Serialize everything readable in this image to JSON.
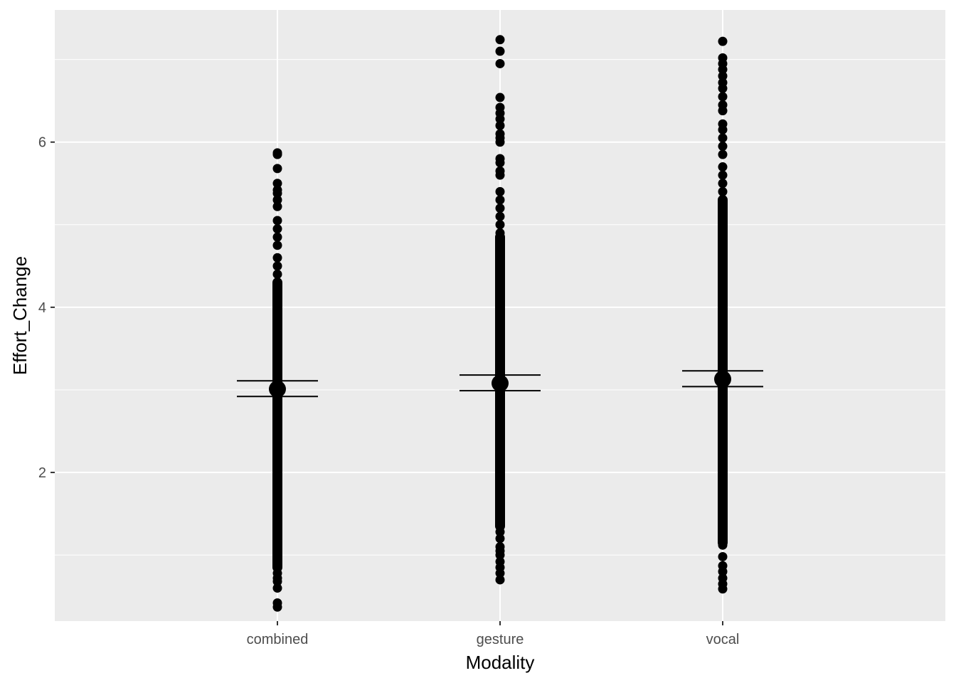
{
  "chart_data": {
    "type": "scatter",
    "title": "",
    "xlabel": "Modality",
    "ylabel": "Effort_Change",
    "categories": [
      "combined",
      "gesture",
      "vocal"
    ],
    "y_ticks": [
      2,
      4,
      6
    ],
    "ylim": [
      0.2,
      7.6
    ],
    "grid": true,
    "legend": "none",
    "colors": {
      "panel": "#ebebeb",
      "grid": "#ffffff",
      "points": "#000000",
      "tick_text": "#4d4d4d"
    },
    "series": [
      {
        "category": "combined",
        "range": [
          0.37,
          5.87
        ],
        "dense_range": [
          0.85,
          4.3
        ],
        "sparse_values": [
          0.37,
          0.42,
          0.6,
          0.68,
          0.72,
          0.78,
          4.3,
          4.4,
          4.5,
          4.6,
          4.75,
          4.85,
          4.95,
          5.05,
          5.22,
          5.3,
          5.38,
          5.42,
          5.5,
          5.68,
          5.85,
          5.87
        ],
        "mean": 3.01,
        "ci": [
          2.92,
          3.11
        ]
      },
      {
        "category": "gesture",
        "range": [
          0.7,
          7.24
        ],
        "dense_range": [
          1.35,
          4.85
        ],
        "sparse_values": [
          0.7,
          0.78,
          0.85,
          0.92,
          1.0,
          1.05,
          1.1,
          1.2,
          1.28,
          4.9,
          5.0,
          5.1,
          5.2,
          5.3,
          5.4,
          5.6,
          5.65,
          5.75,
          5.8,
          6.0,
          6.05,
          6.1,
          6.2,
          6.28,
          6.35,
          6.42,
          6.54,
          6.95,
          7.1,
          7.24
        ],
        "mean": 3.08,
        "ci": [
          2.99,
          3.18
        ]
      },
      {
        "category": "vocal",
        "range": [
          0.59,
          7.22
        ],
        "dense_range": [
          1.15,
          5.3
        ],
        "sparse_values": [
          0.59,
          0.65,
          0.72,
          0.8,
          0.87,
          0.98,
          1.12,
          1.2,
          5.4,
          5.5,
          5.6,
          5.7,
          5.85,
          5.95,
          6.05,
          6.15,
          6.22,
          6.38,
          6.45,
          6.55,
          6.65,
          6.72,
          6.8,
          6.88,
          6.95,
          7.02,
          7.22
        ],
        "mean": 3.13,
        "ci": [
          3.04,
          3.23
        ]
      }
    ]
  }
}
